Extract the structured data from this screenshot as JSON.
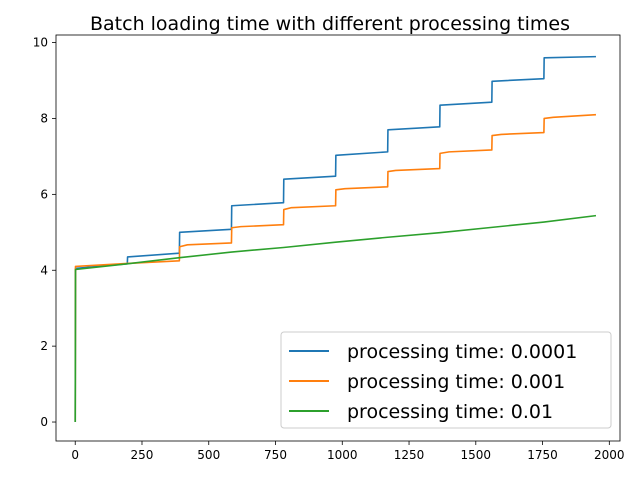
{
  "chart_data": {
    "type": "line",
    "title": "Batch loading time with different processing times",
    "xlabel": "",
    "ylabel": "",
    "xlim": [
      -72,
      2040
    ],
    "ylim": [
      -0.5,
      10.2
    ],
    "xticks": [
      0,
      250,
      500,
      750,
      1000,
      1250,
      1500,
      1750,
      2000
    ],
    "yticks": [
      0,
      2,
      4,
      6,
      8,
      10
    ],
    "grid": false,
    "legend_position": "lower-right",
    "series": [
      {
        "name": "processing time: 0.0001",
        "color": "#1f77b4",
        "points": [
          [
            0,
            0.0
          ],
          [
            1,
            4.05
          ],
          [
            195,
            4.17
          ],
          [
            196,
            4.35
          ],
          [
            390,
            4.45
          ],
          [
            391,
            5.0
          ],
          [
            585,
            5.08
          ],
          [
            586,
            5.7
          ],
          [
            780,
            5.78
          ],
          [
            781,
            6.4
          ],
          [
            975,
            6.48
          ],
          [
            976,
            7.03
          ],
          [
            1170,
            7.12
          ],
          [
            1171,
            7.7
          ],
          [
            1365,
            7.78
          ],
          [
            1366,
            8.35
          ],
          [
            1560,
            8.43
          ],
          [
            1561,
            8.98
          ],
          [
            1755,
            9.05
          ],
          [
            1756,
            9.6
          ],
          [
            1950,
            9.63
          ]
        ]
      },
      {
        "name": "processing time: 0.001",
        "color": "#ff7f0e",
        "points": [
          [
            0,
            0.0
          ],
          [
            1,
            4.1
          ],
          [
            195,
            4.18
          ],
          [
            390,
            4.25
          ],
          [
            391,
            4.62
          ],
          [
            420,
            4.67
          ],
          [
            585,
            4.72
          ],
          [
            586,
            5.12
          ],
          [
            620,
            5.15
          ],
          [
            780,
            5.2
          ],
          [
            781,
            5.6
          ],
          [
            810,
            5.65
          ],
          [
            975,
            5.7
          ],
          [
            976,
            6.12
          ],
          [
            1010,
            6.15
          ],
          [
            1170,
            6.2
          ],
          [
            1171,
            6.6
          ],
          [
            1200,
            6.63
          ],
          [
            1365,
            6.68
          ],
          [
            1366,
            7.08
          ],
          [
            1400,
            7.12
          ],
          [
            1560,
            7.17
          ],
          [
            1561,
            7.55
          ],
          [
            1595,
            7.58
          ],
          [
            1755,
            7.63
          ],
          [
            1756,
            8.0
          ],
          [
            1790,
            8.03
          ],
          [
            1950,
            8.1
          ]
        ]
      },
      {
        "name": "processing time: 0.01",
        "color": "#2ca02c",
        "points": [
          [
            0,
            0.0
          ],
          [
            1,
            4.02
          ],
          [
            195,
            4.17
          ],
          [
            390,
            4.33
          ],
          [
            585,
            4.48
          ],
          [
            780,
            4.6
          ],
          [
            975,
            4.74
          ],
          [
            1170,
            4.87
          ],
          [
            1365,
            4.99
          ],
          [
            1560,
            5.13
          ],
          [
            1755,
            5.27
          ],
          [
            1950,
            5.44
          ]
        ]
      }
    ]
  }
}
